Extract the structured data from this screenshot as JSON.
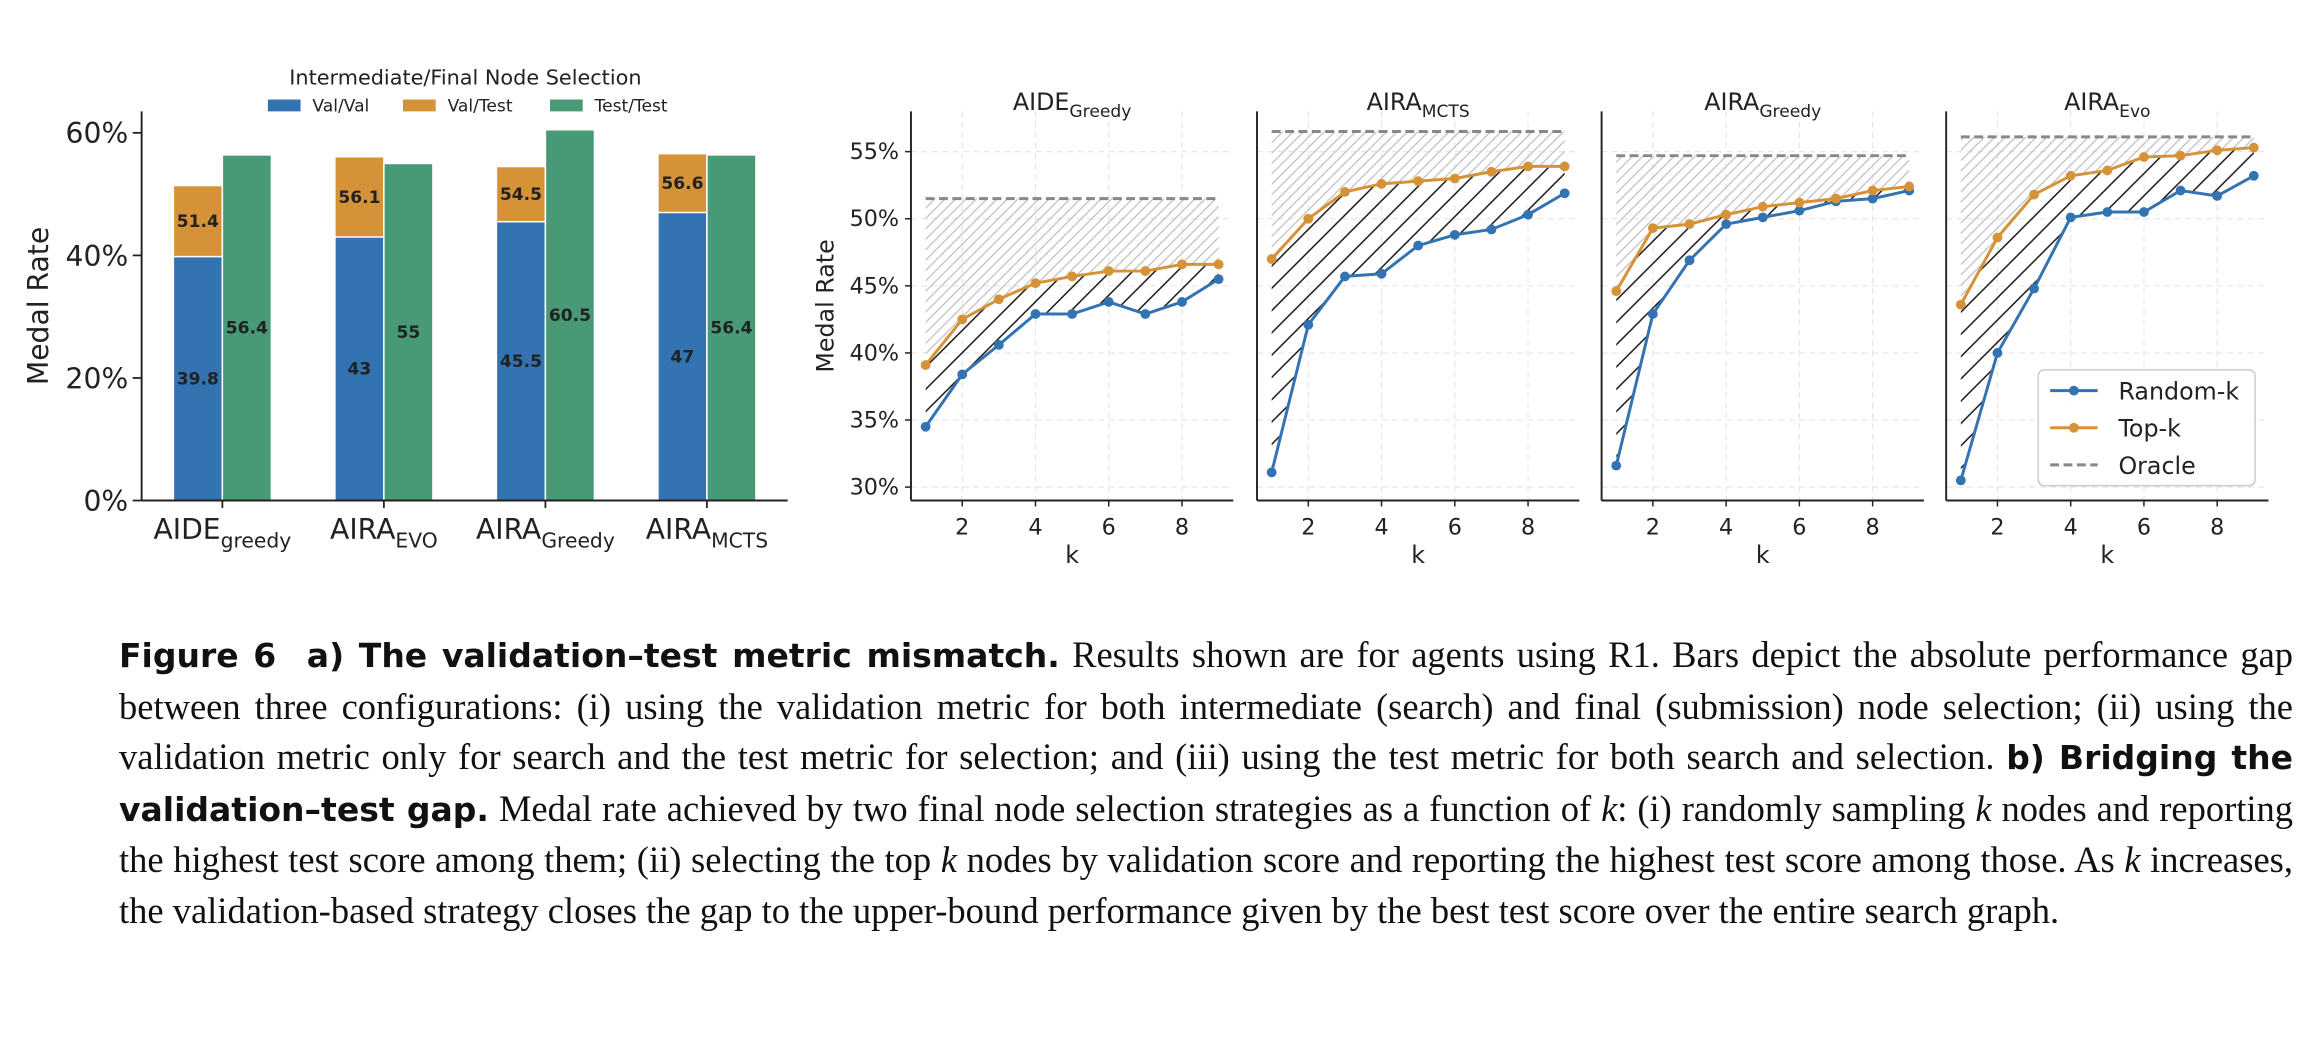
{
  "chart_data": [
    {
      "type": "bar",
      "ylabel": "Medal Rate",
      "legend_title": "Intermediate/Final Node Selection",
      "categories": [
        {
          "base": "AIDE",
          "sub": "greedy"
        },
        {
          "base": "AIRA",
          "sub": "EVO"
        },
        {
          "base": "AIRA",
          "sub": "Greedy"
        },
        {
          "base": "AIRA",
          "sub": "MCTS"
        }
      ],
      "series": [
        {
          "name": "Val/Val",
          "color": "#3373b1",
          "values": [
            39.8,
            43.0,
            45.5,
            47.0
          ]
        },
        {
          "name": "Val/Test",
          "color": "#d69237",
          "values": [
            51.4,
            56.1,
            54.5,
            56.6
          ]
        },
        {
          "name": "Test/Test",
          "color": "#479a75",
          "values": [
            56.4,
            55.0,
            60.5,
            56.4
          ]
        }
      ],
      "ylim": [
        0,
        63.5
      ],
      "yticks": [
        {
          "value": 0,
          "label": "0%"
        },
        {
          "value": 20,
          "label": "20%"
        },
        {
          "value": 40,
          "label": "40%"
        },
        {
          "value": 60,
          "label": "60%"
        }
      ]
    },
    {
      "type": "line",
      "ylabel": "Medal Rate",
      "xlabel": "k",
      "x": [
        1,
        2,
        3,
        4,
        5,
        6,
        7,
        8,
        9
      ],
      "xlim": [
        0.6,
        9.4
      ],
      "xticks": [
        2,
        4,
        6,
        8
      ],
      "ylim": [
        29,
        58
      ],
      "yticks": [
        {
          "value": 30,
          "label": "30%"
        },
        {
          "value": 35,
          "label": "35%"
        },
        {
          "value": 40,
          "label": "40%"
        },
        {
          "value": 45,
          "label": "45%"
        },
        {
          "value": 50,
          "label": "50%"
        },
        {
          "value": 55,
          "label": "55%"
        }
      ],
      "grid": true,
      "legend": "lower right",
      "series": [
        {
          "name": "Random-k",
          "color": "#3373b1"
        },
        {
          "name": "Top-k",
          "color": "#d69237"
        }
      ],
      "oracle": {
        "name": "Oracle",
        "color": "#888888"
      },
      "panels": [
        {
          "title": {
            "base": "AIDE",
            "sub": "Greedy"
          },
          "oracle": 51.5,
          "values": [
            [
              34.5,
              38.4,
              40.6,
              42.9,
              42.9,
              43.8,
              42.9,
              43.8,
              45.5
            ],
            [
              39.1,
              42.5,
              44.0,
              45.2,
              45.7,
              46.1,
              46.1,
              46.6,
              46.6
            ]
          ]
        },
        {
          "title": {
            "base": "AIRA",
            "sub": "MCTS"
          },
          "oracle": 56.5,
          "values": [
            [
              31.1,
              42.1,
              45.7,
              45.9,
              48.0,
              48.8,
              49.2,
              50.3,
              51.9
            ],
            [
              47.0,
              50.0,
              52.0,
              52.6,
              52.8,
              53.0,
              53.5,
              53.9,
              53.9
            ]
          ]
        },
        {
          "title": {
            "base": "AIRA",
            "sub": "Greedy"
          },
          "oracle": 54.7,
          "values": [
            [
              31.6,
              42.9,
              46.9,
              49.6,
              50.1,
              50.6,
              51.3,
              51.5,
              52.1
            ],
            [
              44.6,
              49.3,
              49.6,
              50.3,
              50.9,
              51.2,
              51.5,
              52.1,
              52.4
            ]
          ]
        },
        {
          "title": {
            "base": "AIRA",
            "sub": "Evo"
          },
          "oracle": 56.1,
          "values": [
            [
              30.5,
              40.0,
              44.8,
              50.1,
              50.5,
              50.5,
              52.1,
              51.7,
              53.2
            ],
            [
              43.6,
              48.6,
              51.8,
              53.2,
              53.6,
              54.6,
              54.7,
              55.1,
              55.3
            ]
          ]
        }
      ]
    }
  ],
  "caption": {
    "label": "Figure 6",
    "part_a_title": "a) The validation–test metric mismatch.",
    "part_a_text": "Results shown are for agents using R1. Bars depict the absolute performance gap between three configurations: (i) using the validation metric for both intermediate (search) and final (submission) node selection; (ii) using the validation metric only for search and the test metric for selection; and (iii) using the test metric for both search and selection.",
    "part_b_title": "b) Bridging the validation–test gap.",
    "part_b_text": [
      "Medal rate achieved by two final node selection strategies as a function of ",
      "k",
      ": (i) randomly sampling ",
      "k",
      " nodes and reporting the highest test score among them; (ii) selecting the top ",
      "k",
      " nodes by validation score and reporting the highest test score among those. As ",
      "k",
      " increases, the validation-based strategy closes the gap to the upper-bound performance given by the best test score over the entire search graph."
    ]
  }
}
